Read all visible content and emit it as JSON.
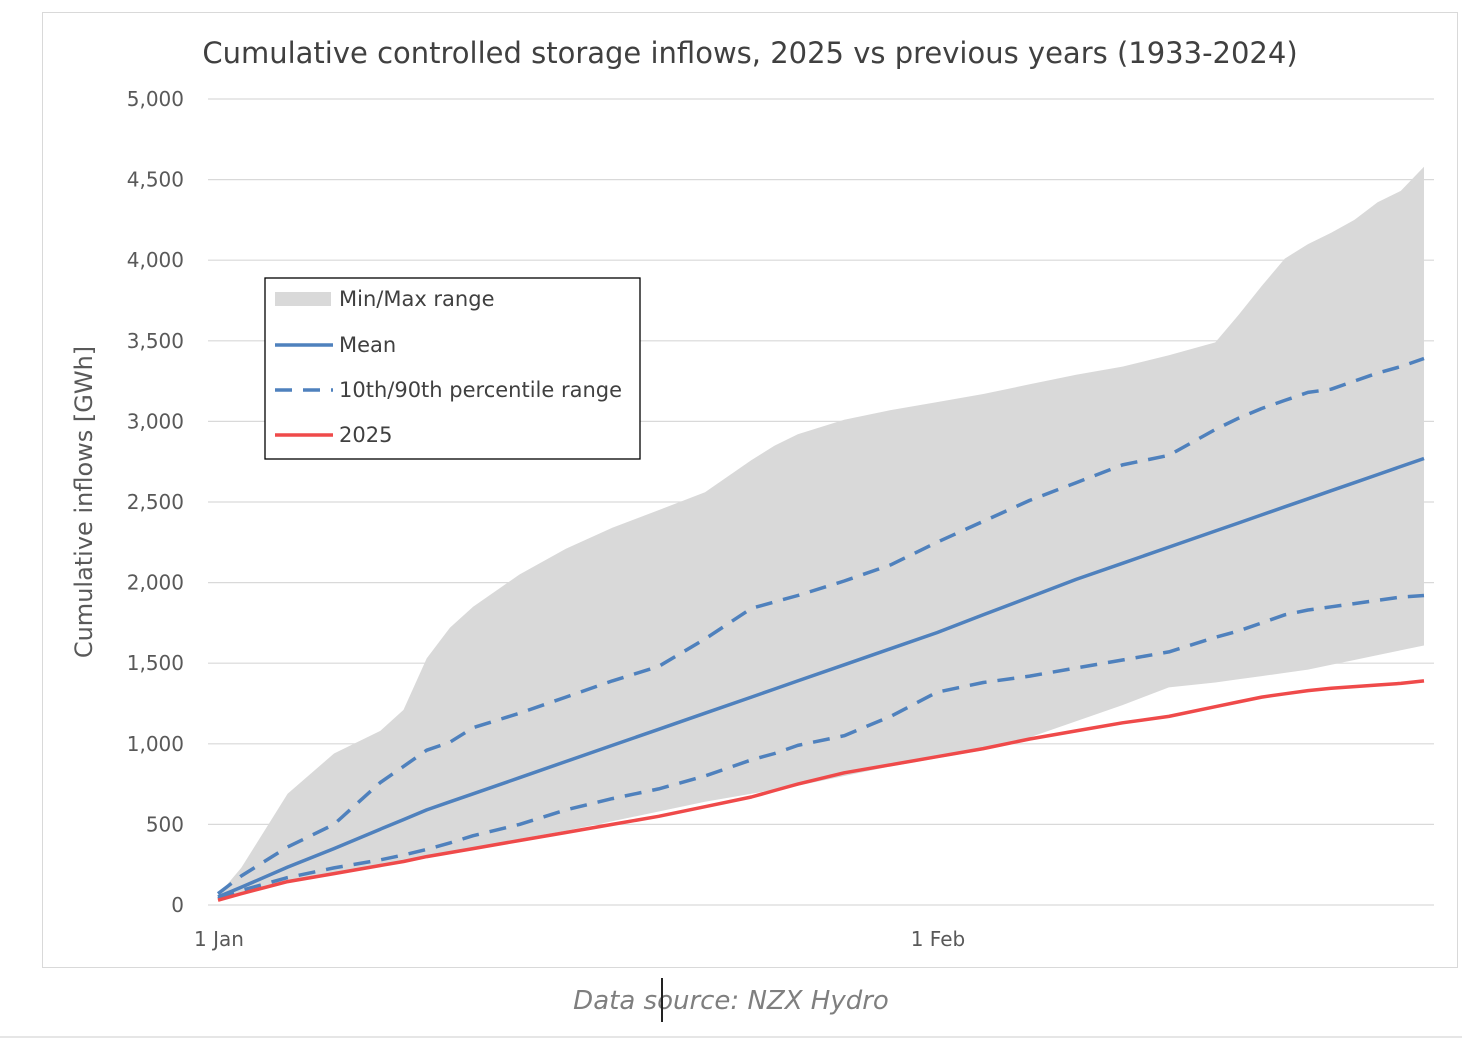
{
  "chart_data": {
    "type": "area",
    "title": "Cumulative controlled storage inflows, 2025 vs previous years (1933-2024)",
    "xlabel": "",
    "ylabel": "Cumulative inflows [GWh]",
    "ylim": [
      0,
      5000
    ],
    "yticks": [
      0,
      500,
      1000,
      1500,
      2000,
      2500,
      3000,
      3500,
      4000,
      4500,
      5000
    ],
    "ytick_labels": [
      "0",
      "500",
      "1,000",
      "1,500",
      "2,000",
      "2,500",
      "3,000",
      "3,500",
      "4,000",
      "4,500",
      "5,000"
    ],
    "xlim": [
      1,
      53
    ],
    "xticks": [
      {
        "day": 1,
        "label": "1 Jan"
      },
      {
        "day": 32,
        "label": "1 Feb"
      }
    ],
    "legend": {
      "placement": "upper-left",
      "entries": [
        {
          "label": "Min/Max range",
          "style": "area"
        },
        {
          "label": "Mean",
          "style": "solid"
        },
        {
          "label": "10th/90th percentile range",
          "style": "dashed"
        },
        {
          "label": "2025",
          "style": "solid"
        }
      ]
    },
    "x": [
      1,
      2,
      4,
      6,
      8,
      9,
      10,
      11,
      12,
      14,
      16,
      18,
      20,
      22,
      24,
      25,
      26,
      28,
      30,
      32,
      34,
      36,
      38,
      40,
      42,
      44,
      45,
      46,
      47,
      48,
      49,
      50,
      51,
      52,
      53
    ],
    "series": [
      {
        "name": "Max",
        "role": "range-upper",
        "values": [
          60,
          230,
          690,
          940,
          1080,
          1210,
          1530,
          1720,
          1850,
          2050,
          2210,
          2340,
          2450,
          2560,
          2760,
          2850,
          2920,
          3010,
          3070,
          3120,
          3170,
          3230,
          3290,
          3340,
          3410,
          3490,
          3660,
          3840,
          4010,
          4100,
          4170,
          4250,
          4360,
          4430,
          4580
        ]
      },
      {
        "name": "Min",
        "role": "range-lower",
        "values": [
          30,
          80,
          150,
          200,
          245,
          270,
          300,
          325,
          355,
          410,
          460,
          520,
          580,
          640,
          690,
          715,
          740,
          800,
          860,
          910,
          960,
          1040,
          1140,
          1240,
          1350,
          1380,
          1400,
          1420,
          1440,
          1460,
          1490,
          1520,
          1550,
          1580,
          1610
        ]
      },
      {
        "name": "Mean",
        "role": "mean",
        "color": "#4f81bd",
        "values": [
          50,
          110,
          235,
          350,
          470,
          530,
          590,
          640,
          690,
          790,
          890,
          990,
          1090,
          1190,
          1290,
          1340,
          1390,
          1490,
          1590,
          1690,
          1800,
          1910,
          2020,
          2120,
          2220,
          2320,
          2370,
          2420,
          2470,
          2520,
          2570,
          2620,
          2670,
          2720,
          2770
        ]
      },
      {
        "name": "90th percentile",
        "role": "p90",
        "color": "#4f81bd",
        "values": [
          70,
          180,
          360,
          500,
          760,
          860,
          960,
          1010,
          1100,
          1190,
          1290,
          1390,
          1480,
          1650,
          1840,
          1880,
          1920,
          2010,
          2110,
          2250,
          2380,
          2510,
          2620,
          2730,
          2790,
          2950,
          3020,
          3080,
          3130,
          3180,
          3200,
          3250,
          3300,
          3340,
          3390
        ]
      },
      {
        "name": "10th percentile",
        "role": "p10",
        "color": "#4f81bd",
        "values": [
          40,
          90,
          170,
          230,
          280,
          310,
          345,
          385,
          430,
          500,
          590,
          660,
          720,
          800,
          900,
          940,
          990,
          1050,
          1170,
          1320,
          1380,
          1420,
          1470,
          1520,
          1570,
          1660,
          1700,
          1750,
          1800,
          1830,
          1850,
          1870,
          1890,
          1910,
          1920
        ]
      },
      {
        "name": "2025",
        "role": "current",
        "color": "#ef4a4a",
        "values": [
          30,
          70,
          145,
          195,
          245,
          270,
          300,
          325,
          350,
          400,
          450,
          500,
          550,
          610,
          670,
          710,
          750,
          820,
          870,
          920,
          970,
          1030,
          1080,
          1130,
          1170,
          1230,
          1260,
          1290,
          1310,
          1330,
          1345,
          1355,
          1365,
          1375,
          1390
        ]
      }
    ],
    "colors": {
      "range": "#d9d9d9",
      "mean": "#4f81bd",
      "percentile": "#4f81bd",
      "current": "#ef4a4a",
      "grid": "#d9d9d9"
    }
  },
  "footer": {
    "source": "Data source: NZX Hydro"
  }
}
